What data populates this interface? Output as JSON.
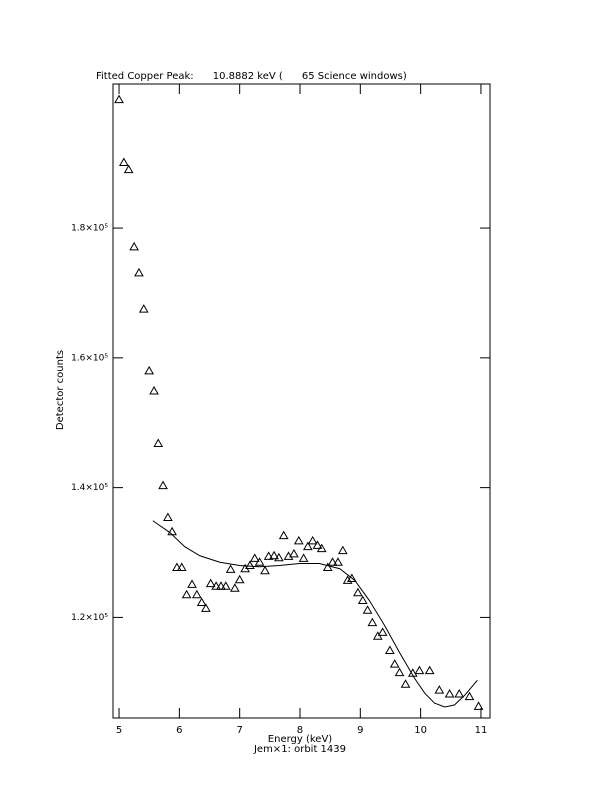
{
  "chart_data": {
    "type": "scatter",
    "title": "Fitted Copper Peak:      10.8882 keV (      65 Science windows)",
    "xlabel": "Energy (keV)",
    "ylabel": "Detector counts",
    "subtitle": "Jem×1: orbit 1439",
    "color": "#000000",
    "xlim": [
      4.9,
      11.15
    ],
    "ylim": [
      104500,
      202200
    ],
    "xticks": [
      5,
      6,
      7,
      8,
      9,
      10,
      11
    ],
    "yticks": [
      {
        "value": 120000,
        "label": "1.2×10⁵"
      },
      {
        "value": 140000,
        "label": "1.4×10⁵"
      },
      {
        "value": 160000,
        "label": "1.6×10⁵"
      },
      {
        "value": 180000,
        "label": "1.8×10⁵"
      }
    ],
    "points": {
      "x": [
        5.0,
        5.08,
        5.16,
        5.25,
        5.33,
        5.41,
        5.5,
        5.58,
        5.65,
        5.73,
        5.81,
        5.88,
        5.96,
        6.04,
        6.12,
        6.21,
        6.29,
        6.37,
        6.44,
        6.52,
        6.61,
        6.69,
        6.77,
        6.85,
        6.92,
        7.0,
        7.09,
        7.17,
        7.25,
        7.33,
        7.42,
        7.48,
        7.57,
        7.65,
        7.73,
        7.81,
        7.9,
        7.98,
        8.06,
        8.13,
        8.21,
        8.29,
        8.36,
        8.46,
        8.54,
        8.63,
        8.71,
        8.79,
        8.86,
        8.96,
        9.04,
        9.12,
        9.2,
        9.29,
        9.37,
        9.49,
        9.57,
        9.65,
        9.75,
        9.87,
        9.98,
        10.15,
        10.31,
        10.48,
        10.64,
        10.81,
        10.96
      ],
      "y": [
        199800,
        190100,
        189000,
        177100,
        173100,
        167500,
        158000,
        154900,
        146800,
        140300,
        135400,
        133200,
        127700,
        127700,
        123500,
        125100,
        123500,
        122300,
        121400,
        125200,
        124800,
        124800,
        124800,
        127400,
        124500,
        125800,
        127500,
        128000,
        129100,
        128500,
        127200,
        129400,
        129500,
        129200,
        132600,
        129400,
        129800,
        131800,
        129100,
        130900,
        131800,
        131100,
        130600,
        127700,
        128500,
        128500,
        130300,
        125700,
        126000,
        123800,
        122600,
        121100,
        119200,
        117100,
        117700,
        114900,
        112800,
        111500,
        109700,
        111400,
        111800,
        111800,
        108800,
        108200,
        108200,
        107800,
        106300
      ]
    },
    "fit": {
      "x": [
        5.56,
        5.84,
        6.09,
        6.34,
        6.67,
        7.0,
        7.33,
        7.66,
        7.99,
        8.32,
        8.66,
        8.91,
        9.15,
        9.4,
        9.65,
        9.9,
        10.07,
        10.23,
        10.4,
        10.56,
        10.73,
        10.94
      ],
      "y": [
        134900,
        133100,
        130900,
        129500,
        128500,
        128000,
        127800,
        128000,
        128300,
        128300,
        127500,
        125700,
        122600,
        118800,
        114600,
        110600,
        108300,
        106800,
        106200,
        106500,
        108000,
        110300
      ]
    }
  }
}
